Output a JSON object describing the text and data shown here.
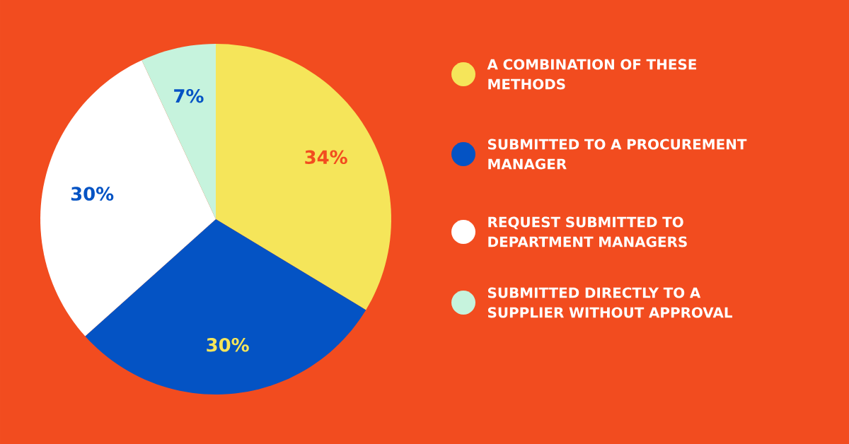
{
  "chart_data": {
    "type": "pie",
    "categories": [
      "A COMBINATION OF THESE METHODS",
      "SUBMITTED TO A PROCUREMENT MANAGER",
      "REQUEST SUBMITTED TO DEPARTMENT MANAGERS",
      "SUBMITTED DIRECTLY TO A SUPPLIER WITHOUT APPROVAL"
    ],
    "values": [
      34,
      30,
      30,
      7
    ],
    "colors": [
      "#f5e55a",
      "#0453c4",
      "#ffffff",
      "#c6f3dd"
    ],
    "value_labels": [
      "34%",
      "30%",
      "30%",
      "7%"
    ],
    "legend": "right"
  }
}
